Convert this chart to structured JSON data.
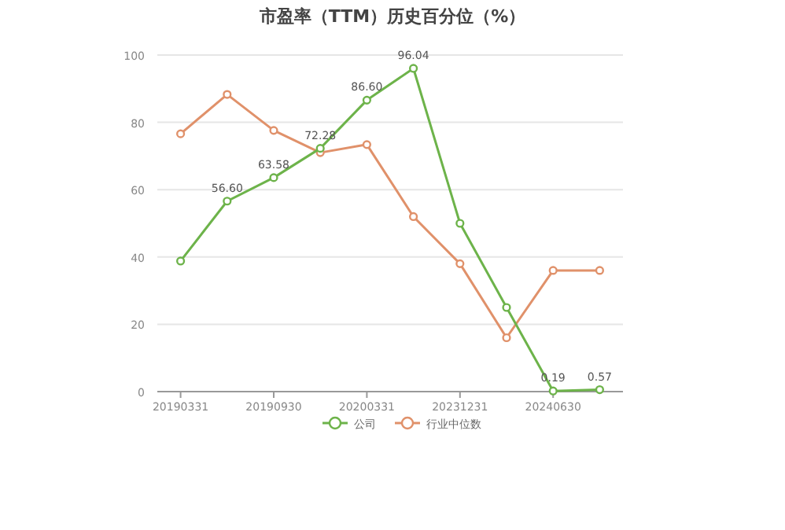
{
  "chart_data": {
    "type": "line",
    "title": "市盈率（TTM）历史百分位（%）",
    "categories": [
      "20190331",
      null,
      "20190930",
      null,
      "20200331",
      null,
      "20231231",
      null,
      "20240630",
      null
    ],
    "series": [
      {
        "name": "公司",
        "color": "#6db34a",
        "values": [
          38.8,
          56.6,
          63.58,
          72.28,
          86.6,
          96.04,
          50,
          25,
          0.19,
          0.57
        ],
        "value_labels": [
          null,
          "56.60",
          "63.58",
          "72.28",
          "86.60",
          "96.04",
          null,
          null,
          "0.19",
          "0.57"
        ]
      },
      {
        "name": "行业中位数",
        "color": "#e0916a",
        "values": [
          76.6,
          88.3,
          77.6,
          71,
          73.4,
          52,
          38,
          16,
          36,
          36
        ]
      }
    ],
    "ylim": [
      0,
      100
    ],
    "yticks": [
      0,
      20,
      40,
      60,
      80,
      100
    ],
    "grid": "y",
    "legend": "bottom",
    "marker": "circle"
  }
}
